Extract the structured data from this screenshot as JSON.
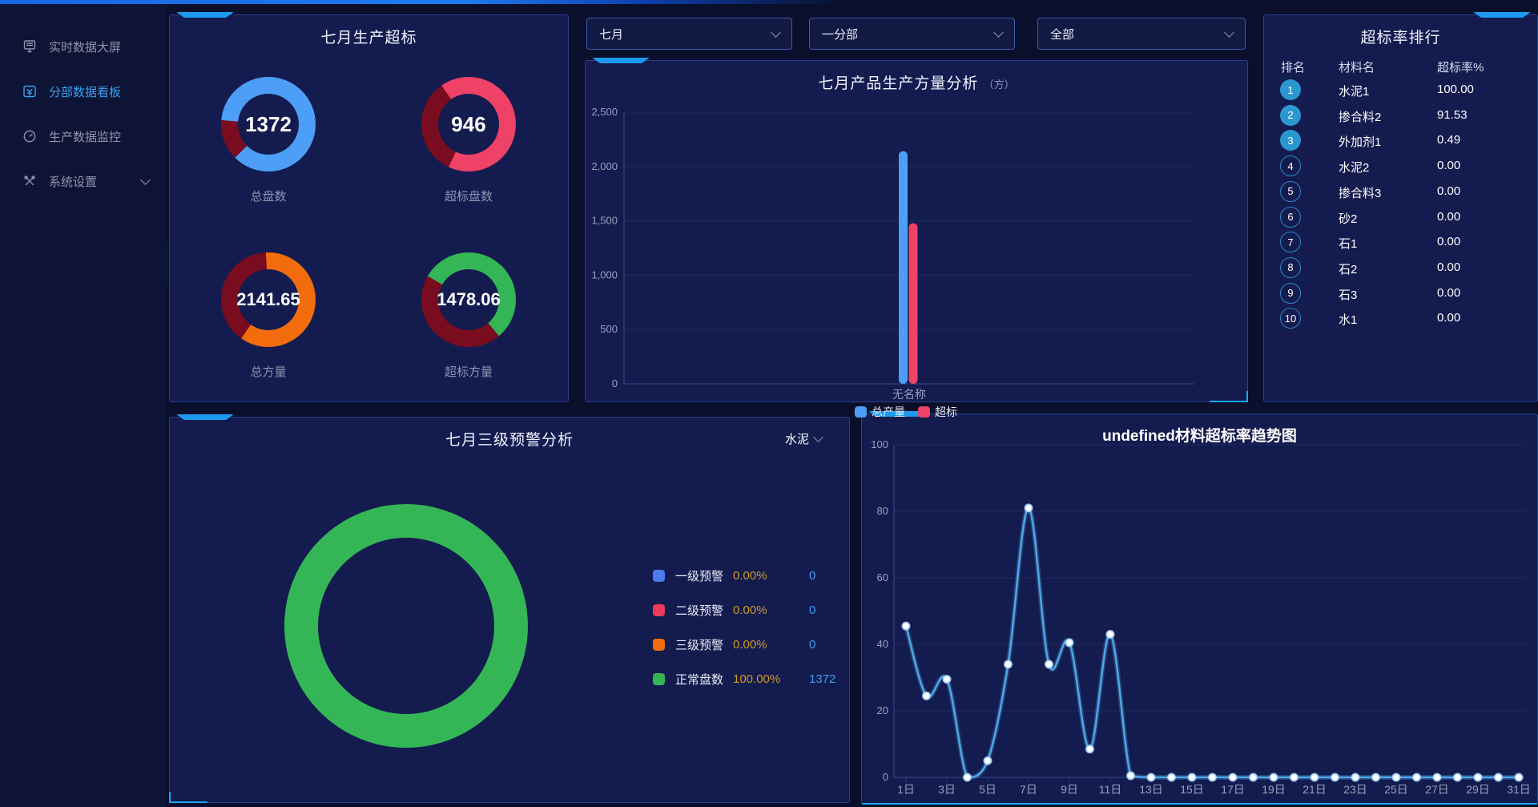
{
  "colors": {
    "accent_cyan": "#1d9af0",
    "blue": "#4d9ef6",
    "red": "#ee4266",
    "orange": "#f26c0d",
    "green": "#35b656",
    "dark_red": "#7a0c20",
    "percent_text": "#cf9a2a",
    "count_text": "#3f9ef2"
  },
  "sidebar": {
    "items": [
      {
        "label": "实时数据大屏",
        "icon": "screen-icon",
        "active": false,
        "expandable": false
      },
      {
        "label": "分部数据看板",
        "icon": "board-icon",
        "active": true,
        "expandable": false
      },
      {
        "label": "生产数据监控",
        "icon": "gauge-icon",
        "active": false,
        "expandable": false
      },
      {
        "label": "系统设置",
        "icon": "tools-icon",
        "active": false,
        "expandable": true
      }
    ]
  },
  "filters": {
    "month": "七月",
    "branch": "一分部",
    "material": "全部"
  },
  "production_panel": {
    "title": "七月生产超标",
    "donuts": [
      {
        "value": "1372",
        "label": "总盘数",
        "color": "#4d9ef6",
        "remainder_color": "#7a0c20",
        "remainder_start_deg": 225,
        "remainder_sweep_deg": 50
      },
      {
        "value": "946",
        "label": "超标盘数",
        "color": "#ee4266",
        "remainder_color": "#7a0c20",
        "remainder_start_deg": 205,
        "remainder_sweep_deg": 120
      },
      {
        "value": "2141.65",
        "label": "总方量",
        "color": "#f26c0d",
        "remainder_color": "#7a0c20",
        "remainder_start_deg": 215,
        "remainder_sweep_deg": 142
      },
      {
        "value": "1478.06",
        "label": "超标方量",
        "color": "#35b656",
        "remainder_color": "#7a0c20",
        "remainder_start_deg": 140,
        "remainder_sweep_deg": 160
      }
    ]
  },
  "ranking_panel": {
    "title": "超标率排行",
    "headers": [
      "排名",
      "材料名",
      "超标率%"
    ],
    "rows": [
      {
        "rank": "1",
        "material": "水泥1",
        "rate": "100.00"
      },
      {
        "rank": "2",
        "material": "掺合料2",
        "rate": "91.53"
      },
      {
        "rank": "3",
        "material": "外加剂1",
        "rate": "0.49"
      },
      {
        "rank": "4",
        "material": "水泥2",
        "rate": "0.00"
      },
      {
        "rank": "5",
        "material": "掺合料3",
        "rate": "0.00"
      },
      {
        "rank": "6",
        "material": "砂2",
        "rate": "0.00"
      },
      {
        "rank": "7",
        "material": "石1",
        "rate": "0.00"
      },
      {
        "rank": "8",
        "material": "石2",
        "rate": "0.00"
      },
      {
        "rank": "9",
        "material": "石3",
        "rate": "0.00"
      },
      {
        "rank": "10",
        "material": "水1",
        "rate": "0.00"
      }
    ]
  },
  "warning_panel": {
    "title": "七月三级预警分析",
    "selector": "水泥",
    "donut": {
      "color": "#35b656",
      "value_pct": 100
    },
    "legend": [
      {
        "label": "一级预警",
        "color": "#4b7bec",
        "pct": "0.00%",
        "count": "0"
      },
      {
        "label": "二级预警",
        "color": "#ea3b5c",
        "pct": "0.00%",
        "count": "0"
      },
      {
        "label": "三级预警",
        "color": "#f26c0d",
        "pct": "0.00%",
        "count": "0"
      },
      {
        "label": "正常盘数",
        "color": "#35b656",
        "pct": "100.00%",
        "count": "1372"
      }
    ]
  },
  "chart_data": [
    {
      "id": "volume",
      "type": "bar",
      "title": "七月产品生产方量分析",
      "unit": "（方）",
      "categories": [
        "无名称"
      ],
      "series": [
        {
          "name": "总产量",
          "color": "#4d9ef6",
          "values": [
            2141.65
          ]
        },
        {
          "name": "超标",
          "color": "#ee4266",
          "values": [
            1478.06
          ]
        }
      ],
      "ylim": [
        0,
        2500
      ],
      "yticks": [
        0,
        500,
        1000,
        1500,
        2000,
        2500
      ],
      "legend_position": "bottom"
    },
    {
      "id": "trend",
      "type": "line",
      "title": "undefined材料超标率趋势图",
      "line_color": "#4da8e8",
      "days": 31,
      "x_label_suffix": "日",
      "x_labeled_days": [
        1,
        3,
        5,
        7,
        9,
        11,
        13,
        15,
        17,
        19,
        21,
        23,
        25,
        27,
        29,
        31
      ],
      "values": [
        45.5,
        24.5,
        29.5,
        0,
        5,
        34,
        81,
        34,
        40.5,
        8.5,
        43,
        0.5,
        0,
        0,
        0,
        0,
        0,
        0,
        0,
        0,
        0,
        0,
        0,
        0,
        0,
        0,
        0,
        0,
        0,
        0,
        0
      ],
      "ylim": [
        0,
        100
      ],
      "yticks": [
        0,
        20,
        40,
        60,
        80,
        100
      ]
    }
  ]
}
